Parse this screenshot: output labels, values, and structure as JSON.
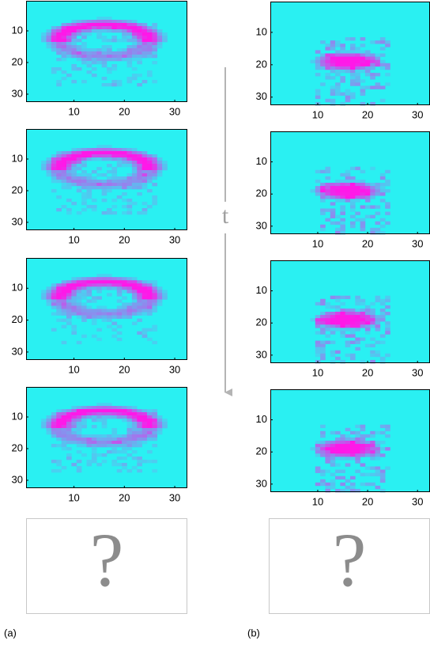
{
  "axes": {
    "xlim": [
      0.5,
      32.5
    ],
    "ylim": [
      0.5,
      32.5
    ],
    "xticks": [
      10,
      20,
      30
    ],
    "yticks": [
      10,
      20,
      30
    ]
  },
  "time_label": "t",
  "placeholder": "?",
  "labels": {
    "a": "(a)",
    "b": "(b)"
  }
}
